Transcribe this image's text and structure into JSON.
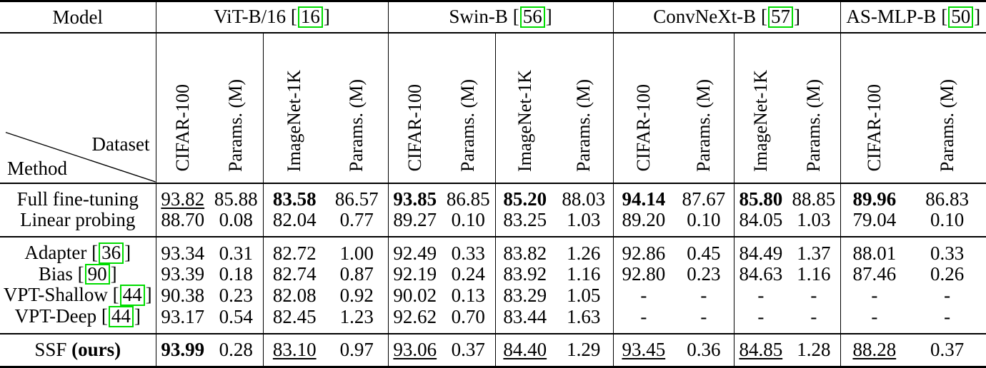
{
  "page": {
    "background": "#ffffff",
    "citation_box_color": "#00dc00"
  },
  "table": {
    "corner": {
      "model_label": "Model",
      "dataset_label": "Dataset",
      "method_label": "Method"
    },
    "model_groups": [
      {
        "name": "ViT-B/16",
        "cite": "16",
        "columns": [
          "CIFAR-100",
          "Params. (M)",
          "ImageNet-1K",
          "Params. (M)"
        ]
      },
      {
        "name": "Swin-B",
        "cite": "56",
        "columns": [
          "CIFAR-100",
          "Params. (M)",
          "ImageNet-1K",
          "Params. (M)"
        ]
      },
      {
        "name": "ConvNeXt-B",
        "cite": "57",
        "columns": [
          "CIFAR-100",
          "Params. (M)",
          "ImageNet-1K",
          "Params. (M)"
        ]
      },
      {
        "name": "AS-MLP-B",
        "cite": "50",
        "columns": [
          "CIFAR-100",
          "Params. (M)"
        ]
      }
    ],
    "sections": [
      {
        "rows": [
          {
            "method": "Full fine-tuning",
            "values": [
              {
                "v": "93.82",
                "s": "u"
              },
              {
                "v": "85.88",
                "s": "p"
              },
              {
                "v": "83.58",
                "s": "b"
              },
              {
                "v": "86.57",
                "s": "p"
              },
              {
                "v": "93.85",
                "s": "b"
              },
              {
                "v": "86.85",
                "s": "p"
              },
              {
                "v": "85.20",
                "s": "b"
              },
              {
                "v": "88.03",
                "s": "p"
              },
              {
                "v": "94.14",
                "s": "b"
              },
              {
                "v": "87.67",
                "s": "p"
              },
              {
                "v": "85.80",
                "s": "b"
              },
              {
                "v": "88.85",
                "s": "p"
              },
              {
                "v": "89.96",
                "s": "b"
              },
              {
                "v": "86.83",
                "s": "p"
              }
            ]
          },
          {
            "method": "Linear probing",
            "values": [
              {
                "v": "88.70",
                "s": "p"
              },
              {
                "v": "0.08",
                "s": "p"
              },
              {
                "v": "82.04",
                "s": "p"
              },
              {
                "v": "0.77",
                "s": "p"
              },
              {
                "v": "89.27",
                "s": "p"
              },
              {
                "v": "0.10",
                "s": "p"
              },
              {
                "v": "83.25",
                "s": "p"
              },
              {
                "v": "1.03",
                "s": "p"
              },
              {
                "v": "89.20",
                "s": "p"
              },
              {
                "v": "0.10",
                "s": "p"
              },
              {
                "v": "84.05",
                "s": "p"
              },
              {
                "v": "1.03",
                "s": "p"
              },
              {
                "v": "79.04",
                "s": "p"
              },
              {
                "v": "0.10",
                "s": "p"
              }
            ]
          }
        ]
      },
      {
        "rows": [
          {
            "method": "Adapter",
            "cite": "36",
            "values": [
              {
                "v": "93.34",
                "s": "p"
              },
              {
                "v": "0.31",
                "s": "p"
              },
              {
                "v": "82.72",
                "s": "p"
              },
              {
                "v": "1.00",
                "s": "p"
              },
              {
                "v": "92.49",
                "s": "p"
              },
              {
                "v": "0.33",
                "s": "p"
              },
              {
                "v": "83.82",
                "s": "p"
              },
              {
                "v": "1.26",
                "s": "p"
              },
              {
                "v": "92.86",
                "s": "p"
              },
              {
                "v": "0.45",
                "s": "p"
              },
              {
                "v": "84.49",
                "s": "p"
              },
              {
                "v": "1.37",
                "s": "p"
              },
              {
                "v": "88.01",
                "s": "p"
              },
              {
                "v": "0.33",
                "s": "p"
              }
            ]
          },
          {
            "method": "Bias",
            "cite": "90",
            "values": [
              {
                "v": "93.39",
                "s": "p"
              },
              {
                "v": "0.18",
                "s": "p"
              },
              {
                "v": "82.74",
                "s": "p"
              },
              {
                "v": "0.87",
                "s": "p"
              },
              {
                "v": "92.19",
                "s": "p"
              },
              {
                "v": "0.24",
                "s": "p"
              },
              {
                "v": "83.92",
                "s": "p"
              },
              {
                "v": "1.16",
                "s": "p"
              },
              {
                "v": "92.80",
                "s": "p"
              },
              {
                "v": "0.23",
                "s": "p"
              },
              {
                "v": "84.63",
                "s": "p"
              },
              {
                "v": "1.16",
                "s": "p"
              },
              {
                "v": "87.46",
                "s": "p"
              },
              {
                "v": "0.26",
                "s": "p"
              }
            ]
          },
          {
            "method": "VPT-Shallow",
            "cite": "44",
            "values": [
              {
                "v": "90.38",
                "s": "p"
              },
              {
                "v": "0.23",
                "s": "p"
              },
              {
                "v": "82.08",
                "s": "p"
              },
              {
                "v": "0.92",
                "s": "p"
              },
              {
                "v": "90.02",
                "s": "p"
              },
              {
                "v": "0.13",
                "s": "p"
              },
              {
                "v": "83.29",
                "s": "p"
              },
              {
                "v": "1.05",
                "s": "p"
              },
              {
                "v": "-",
                "s": "p"
              },
              {
                "v": "-",
                "s": "p"
              },
              {
                "v": "-",
                "s": "p"
              },
              {
                "v": "-",
                "s": "p"
              },
              {
                "v": "-",
                "s": "p"
              },
              {
                "v": "-",
                "s": "p"
              }
            ]
          },
          {
            "method": "VPT-Deep",
            "cite": "44",
            "values": [
              {
                "v": "93.17",
                "s": "p"
              },
              {
                "v": "0.54",
                "s": "p"
              },
              {
                "v": "82.45",
                "s": "p"
              },
              {
                "v": "1.23",
                "s": "p"
              },
              {
                "v": "92.62",
                "s": "p"
              },
              {
                "v": "0.70",
                "s": "p"
              },
              {
                "v": "83.44",
                "s": "p"
              },
              {
                "v": "1.63",
                "s": "p"
              },
              {
                "v": "-",
                "s": "p"
              },
              {
                "v": "-",
                "s": "p"
              },
              {
                "v": "-",
                "s": "p"
              },
              {
                "v": "-",
                "s": "p"
              },
              {
                "v": "-",
                "s": "p"
              },
              {
                "v": "-",
                "s": "p"
              }
            ]
          }
        ]
      },
      {
        "rows": [
          {
            "method": "SSF",
            "method_bold": "(ours)",
            "values": [
              {
                "v": "93.99",
                "s": "b"
              },
              {
                "v": "0.28",
                "s": "p"
              },
              {
                "v": "83.10",
                "s": "u"
              },
              {
                "v": "0.97",
                "s": "p"
              },
              {
                "v": "93.06",
                "s": "u"
              },
              {
                "v": "0.37",
                "s": "p"
              },
              {
                "v": "84.40",
                "s": "u"
              },
              {
                "v": "1.29",
                "s": "p"
              },
              {
                "v": "93.45",
                "s": "u"
              },
              {
                "v": "0.36",
                "s": "p"
              },
              {
                "v": "84.85",
                "s": "u"
              },
              {
                "v": "1.28",
                "s": "p"
              },
              {
                "v": "88.28",
                "s": "u"
              },
              {
                "v": "0.37",
                "s": "p"
              }
            ]
          }
        ]
      }
    ]
  }
}
